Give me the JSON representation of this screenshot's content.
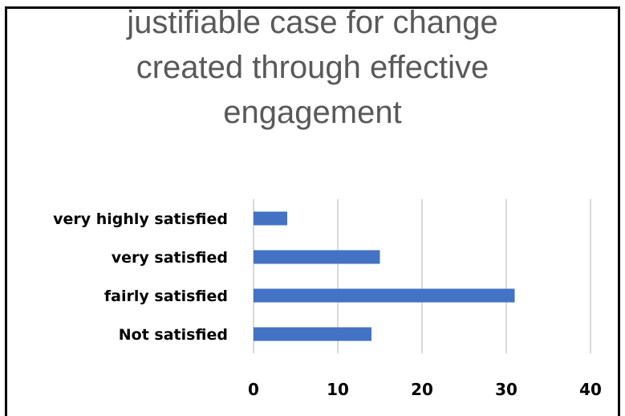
{
  "chart_data": {
    "type": "bar",
    "orientation": "horizontal",
    "title_lines": [
      "justifiable case for change",
      "created through effective",
      "engagement"
    ],
    "categories": [
      "very highly satisfied",
      "very satisfied",
      "fairly satisfied",
      "Not satisfied"
    ],
    "values": [
      4,
      15,
      31,
      14
    ],
    "xlim": [
      0,
      40
    ],
    "x_ticks": [
      0,
      10,
      20,
      30,
      40
    ],
    "grid": true,
    "legend": "none",
    "bar_color": "#4472C4",
    "grid_color": "#d9d9d9"
  }
}
